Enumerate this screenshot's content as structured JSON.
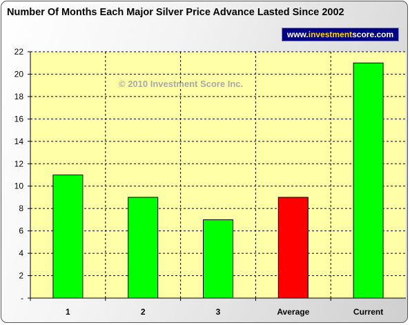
{
  "title": "Number Of Months Each Major Silver Price Advance Lasted Since 2002",
  "website": {
    "prefix": "www.",
    "highlight": "investment",
    "suffix": "score.com"
  },
  "watermark": "© 2010 Investment Score Inc.",
  "colors": {
    "plot_background": "#ffffa8",
    "bar_default": "#00ff00",
    "bar_average": "#ff0000",
    "badge_background": "#000080",
    "badge_highlight": "#ffd700"
  },
  "chart_data": {
    "type": "bar",
    "title": "Number Of Months Each Major Silver Price Advance Lasted Since 2002",
    "categories": [
      "1",
      "2",
      "3",
      "Average",
      "Current"
    ],
    "values": [
      11,
      9,
      7,
      9,
      21
    ],
    "bar_colors": [
      "#00ff00",
      "#00ff00",
      "#00ff00",
      "#ff0000",
      "#00ff00"
    ],
    "ylim": [
      0,
      22
    ],
    "yticks": [
      0,
      2,
      4,
      6,
      8,
      10,
      12,
      14,
      16,
      18,
      20,
      22
    ],
    "ytick_labels": [
      "-",
      "2",
      "4",
      "6",
      "8",
      "10",
      "12",
      "14",
      "16",
      "18",
      "20",
      "22"
    ],
    "xlabel": "",
    "ylabel": "",
    "grid": true,
    "legend": false
  }
}
